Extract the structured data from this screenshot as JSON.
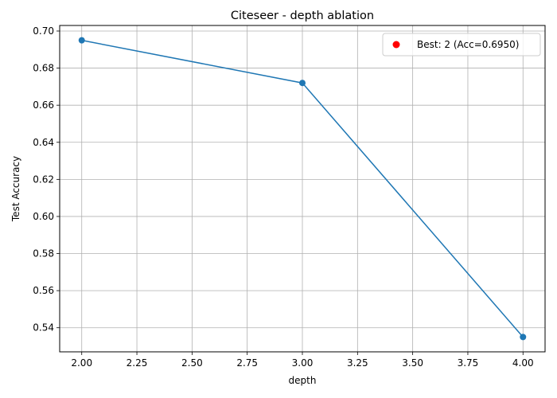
{
  "chart_data": {
    "type": "line",
    "title": "Citeseer - depth ablation",
    "xlabel": "depth",
    "ylabel": "Test Accuracy",
    "xlim": [
      1.9,
      4.1
    ],
    "ylim": [
      0.527,
      0.703
    ],
    "xticks": [
      2.0,
      2.25,
      2.5,
      2.75,
      3.0,
      3.25,
      3.5,
      3.75,
      4.0
    ],
    "xtick_labels": [
      "2.00",
      "2.25",
      "2.50",
      "2.75",
      "3.00",
      "3.25",
      "3.50",
      "3.75",
      "4.00"
    ],
    "yticks": [
      0.54,
      0.56,
      0.58,
      0.6,
      0.62,
      0.64,
      0.66,
      0.68,
      0.7
    ],
    "ytick_labels": [
      "0.54",
      "0.56",
      "0.58",
      "0.60",
      "0.62",
      "0.64",
      "0.66",
      "0.68",
      "0.70"
    ],
    "grid": true,
    "legend_position": "top-right",
    "series": [
      {
        "x": [
          2,
          3,
          4
        ],
        "y": [
          0.695,
          0.672,
          0.535
        ],
        "color": "#1f77b4",
        "marker": "circle"
      }
    ],
    "best_point": {
      "label": "Best: 2 (Acc=0.6950)",
      "color": "#ff0000"
    }
  }
}
